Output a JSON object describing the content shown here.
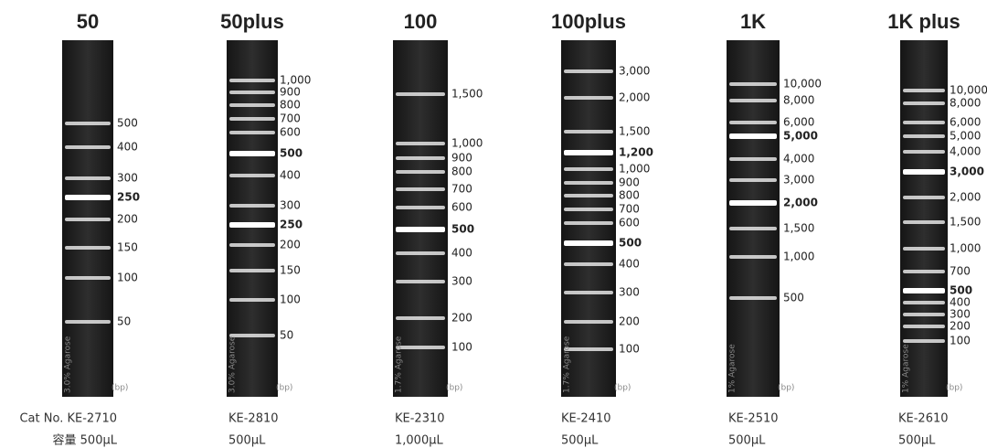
{
  "lanes": [
    {
      "title": "50",
      "gel": "3.0% Agarose",
      "unit": "(bp)",
      "cat": "Cat No. KE-2710",
      "volume": "容量 500μL",
      "bands": [
        {
          "label": "500"
        },
        {
          "label": "400"
        },
        {
          "label": "300"
        },
        {
          "label": "250",
          "color": "#d0121b"
        },
        {
          "label": "200"
        },
        {
          "label": "150"
        },
        {
          "label": "100"
        },
        {
          "label": "50"
        }
      ]
    },
    {
      "title": "50plus",
      "gel": "3.0% Agarose",
      "unit": "(bp)",
      "cat": "KE-2810",
      "volume": "500μL",
      "bands": [
        {
          "label": "1,000"
        },
        {
          "label": "900"
        },
        {
          "label": "800"
        },
        {
          "label": "700"
        },
        {
          "label": "600"
        },
        {
          "label": "500",
          "color": "#d0121b"
        },
        {
          "label": "400"
        },
        {
          "label": "300"
        },
        {
          "label": "250",
          "color": "#d0121b"
        },
        {
          "label": "200"
        },
        {
          "label": "150"
        },
        {
          "label": "100"
        },
        {
          "label": "50"
        }
      ]
    },
    {
      "title": "100",
      "gel": "1.7% Agarose",
      "unit": "(bp)",
      "cat": "KE-2310",
      "volume": "1,000μL",
      "volume_color": "#e53935",
      "bands": [
        {
          "label": "1,500"
        },
        {
          "label": "1,000"
        },
        {
          "label": "900"
        },
        {
          "label": "800"
        },
        {
          "label": "700"
        },
        {
          "label": "600"
        },
        {
          "label": "500",
          "color": "#d0121b"
        },
        {
          "label": "400"
        },
        {
          "label": "300"
        },
        {
          "label": "200"
        },
        {
          "label": "100"
        }
      ]
    },
    {
      "title": "100plus",
      "gel": "1.7% Agarose",
      "unit": "(bp)",
      "cat": "KE-2410",
      "volume": "500μL",
      "bands": [
        {
          "label": "3,000"
        },
        {
          "label": "2,000"
        },
        {
          "label": "1,500"
        },
        {
          "label": "1,200",
          "color": "#d0121b"
        },
        {
          "label": "1,000"
        },
        {
          "label": "900"
        },
        {
          "label": "800"
        },
        {
          "label": "700"
        },
        {
          "label": "600"
        },
        {
          "label": "500",
          "color": "#d0121b"
        },
        {
          "label": "400"
        },
        {
          "label": "300"
        },
        {
          "label": "200"
        },
        {
          "label": "100"
        }
      ]
    },
    {
      "title": "1K",
      "gel": "1% Agarose",
      "unit": "(bp)",
      "cat": "KE-2510",
      "volume": "500μL",
      "bands": [
        {
          "label": "10,000"
        },
        {
          "label": "8,000"
        },
        {
          "label": "6,000"
        },
        {
          "label": "5,000",
          "color": "#d0121b"
        },
        {
          "label": "4,000"
        },
        {
          "label": "3,000"
        },
        {
          "label": "2,000",
          "color": "#d0121b"
        },
        {
          "label": "1,500"
        },
        {
          "label": "1,000"
        },
        {
          "label": "500"
        }
      ]
    },
    {
      "title": "1K plus",
      "gel": "1% Agarose",
      "unit": "(bp)",
      "cat": "KE-2610",
      "volume": "500μL",
      "bands": [
        {
          "label": "10,000"
        },
        {
          "label": "8,000"
        },
        {
          "label": "6,000"
        },
        {
          "label": "5,000"
        },
        {
          "label": "4,000"
        },
        {
          "label": "3,000",
          "color": "#d0121b"
        },
        {
          "label": "2,000"
        },
        {
          "label": "1,500"
        },
        {
          "label": "1,000"
        },
        {
          "label": "700"
        },
        {
          "label": "500",
          "color": "#d0121b"
        },
        {
          "label": "400"
        },
        {
          "label": "300"
        },
        {
          "label": "200"
        },
        {
          "label": "100"
        }
      ]
    }
  ]
}
